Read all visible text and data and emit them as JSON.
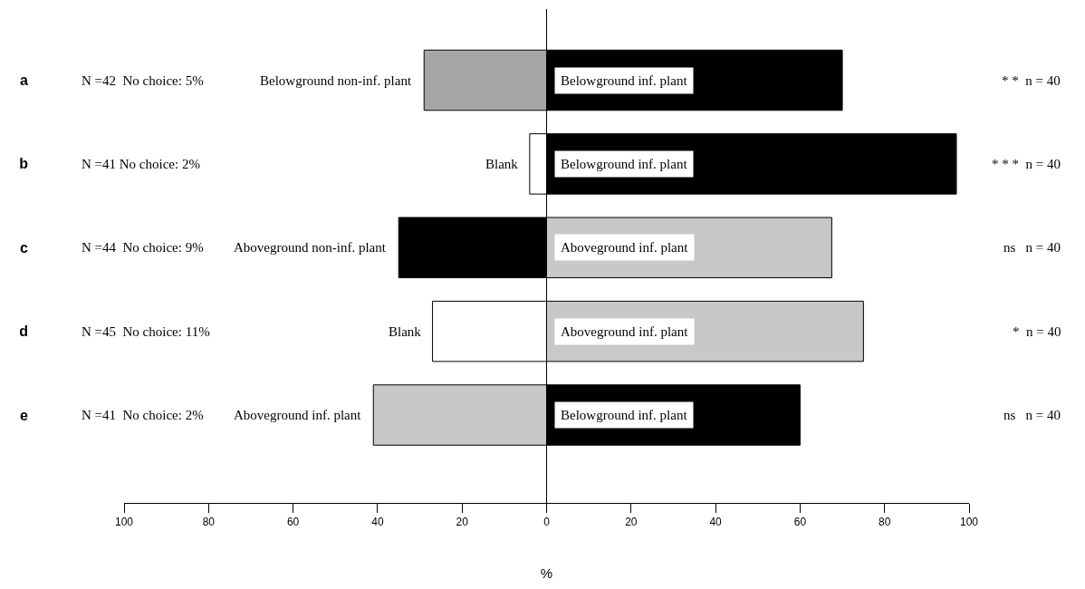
{
  "chart_data": {
    "type": "bar",
    "orientation": "horizontal",
    "stacked": true,
    "xlabel": "%",
    "categories": [
      "a",
      "b",
      "c",
      "d",
      "e"
    ],
    "xlim": [
      -100,
      100
    ],
    "xticks": [
      {
        "value": -100,
        "label": "100"
      },
      {
        "value": -80,
        "label": "80"
      },
      {
        "value": -60,
        "label": "60"
      },
      {
        "value": -40,
        "label": "40"
      },
      {
        "value": -20,
        "label": "20"
      },
      0,
      20,
      40,
      60,
      80,
      100
    ],
    "series": [
      {
        "values": [
          -29,
          -4,
          -35,
          -27,
          -41
        ],
        "colors": [
          "#a6a6a6",
          "#ffffff",
          "#000000",
          "#ffffff",
          "#c8c8c8"
        ],
        "value_labels": [
          "Belowground non-inf. plant",
          "Blank",
          "Aboveground non-inf. plant",
          "Blank",
          "Aboveground inf. plant"
        ]
      },
      {
        "values": [
          70,
          97,
          67.5,
          75,
          60
        ],
        "colors": [
          "#000000",
          "#000000",
          "#c8c8c8",
          "#c8c8c8",
          "#000000"
        ],
        "value_labels": [
          "Belowground inf. plant",
          "Belowground inf. plant",
          "Aboveground inf. plant",
          "Aboveground inf. plant",
          "Belowground inf. plant"
        ]
      }
    ],
    "annotations": [
      "N =42  No choice: 5%",
      "* *  n = 40",
      "N =41 No choice: 2%",
      "* * *  n = 40",
      "N =44  No choice: 9%",
      "ns   n = 40",
      "N =45  No choice: 11%",
      "*  n = 40",
      "N =41  No choice: 2%",
      "ns   n = 40"
    ],
    "ref_lines": [
      {
        "axis": "x",
        "value": 0,
        "color": "#000000",
        "line_style": "solid"
      }
    ],
    "grid": false
  }
}
